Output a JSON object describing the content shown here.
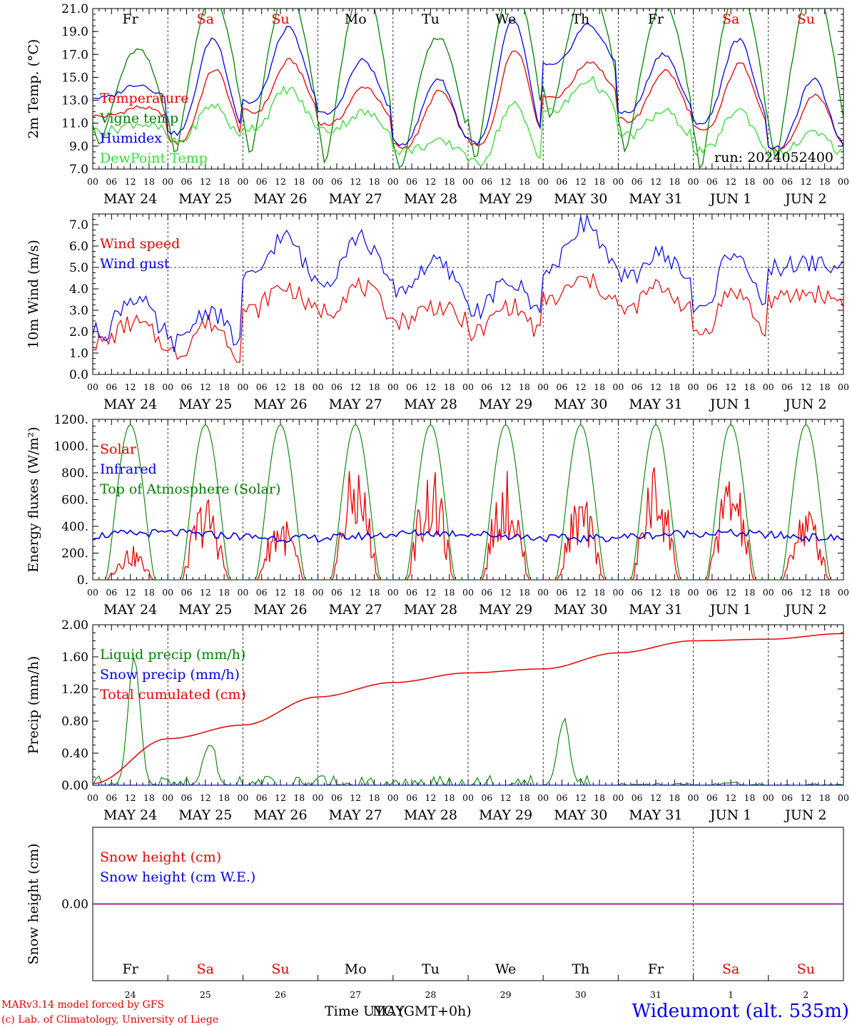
{
  "footer": {
    "credit_line_1": "MARv3.14 model forced by GFS",
    "credit_line_2": "(c) Lab. of Climatology, University of Liege",
    "time_label_a": "Time UTC (GMT+0h)",
    "time_label_b": "MAY",
    "station": "Wideumont (alt. 535m)"
  },
  "colors": {
    "red": "#e60000",
    "blue": "#0000e6",
    "dark_green": "#008000",
    "light_green": "#33dd33",
    "purple": "#8000a0"
  },
  "chart_data": [
    {
      "type": "line",
      "ylabel": "2m Temp. (°C)",
      "ylim": [
        7.0,
        21.0
      ],
      "yticks": [
        "7.0",
        "9.0",
        "11.0",
        "13.0",
        "15.0",
        "17.0",
        "19.0",
        "21.0"
      ],
      "x_hours": [
        "00",
        "06",
        "12",
        "18"
      ],
      "dates": [
        "MAY 24",
        "MAY 25",
        "MAY 26",
        "MAY 27",
        "MAY 28",
        "MAY 29",
        "MAY 30",
        "MAY 31",
        "JUN  1",
        "JUN  2"
      ],
      "weekdays": [
        "Fr",
        "Sa",
        "Su",
        "Mo",
        "Tu",
        "We",
        "Th",
        "Fr",
        "Sa",
        "Su"
      ],
      "weekend": [
        false,
        true,
        true,
        false,
        false,
        false,
        false,
        false,
        true,
        true
      ],
      "annotation": "run: 2024052400",
      "series": [
        {
          "name": "Temperature",
          "color": "#e60000",
          "min": [
            11.6,
            9.3,
            11.9,
            10.9,
            8.9,
            9.0,
            13.3,
            11.2,
            10.3,
            8.6
          ],
          "max": [
            12.4,
            15.7,
            16.5,
            14.2,
            13.8,
            17.5,
            16.4,
            15.6,
            16.2,
            13.5
          ]
        },
        {
          "name": "Vigne temp",
          "color": "#008000",
          "min": [
            9.0,
            8.1,
            8.0,
            7.2,
            6.6,
            7.5,
            11.3,
            8.3,
            6.8,
            7.5
          ],
          "max": [
            17.4,
            22.0,
            22.5,
            23.0,
            18.5,
            23.0,
            23.0,
            21.5,
            23.0,
            23.0
          ]
        },
        {
          "name": "Humidex",
          "color": "#0000e6",
          "min": [
            13.2,
            10.1,
            12.8,
            11.8,
            9.2,
            9.3,
            16.0,
            11.9,
            11.0,
            8.8
          ],
          "max": [
            14.4,
            18.4,
            19.3,
            16.5,
            14.9,
            20.0,
            19.6,
            17.1,
            18.3,
            14.8
          ]
        },
        {
          "name": "DewPoint Temp",
          "color": "#33dd33",
          "min": [
            10.3,
            9.3,
            10.6,
            10.4,
            8.6,
            7.5,
            12.0,
            9.9,
            8.5,
            8.3
          ],
          "max": [
            11.0,
            12.6,
            14.0,
            11.9,
            9.3,
            12.6,
            14.8,
            12.0,
            12.2,
            10.1
          ]
        }
      ]
    },
    {
      "type": "line",
      "ylabel": "10m Wind (m/s)",
      "ylim": [
        0.0,
        7.5
      ],
      "yticks": [
        "0.0",
        "1.0",
        "2.0",
        "3.0",
        "4.0",
        "5.0",
        "6.0",
        "7.0"
      ],
      "reference_line": 5.0,
      "series": [
        {
          "name": "Wind speed",
          "color": "#e60000",
          "daily_mean": [
            1.5,
            1.0,
            3.0,
            3.0,
            2.5,
            2.0,
            3.5,
            3.0,
            2.0,
            3.5
          ],
          "daily_peak": [
            2.4,
            2.4,
            4.1,
            4.1,
            3.2,
            3.2,
            4.4,
            4.1,
            3.9,
            3.8
          ]
        },
        {
          "name": "Wind gust",
          "color": "#0000e6",
          "daily_mean": [
            2.0,
            1.5,
            4.5,
            4.5,
            4.0,
            3.0,
            5.0,
            4.5,
            3.0,
            5.0
          ],
          "daily_peak": [
            3.6,
            3.0,
            6.4,
            6.4,
            5.2,
            4.3,
            7.1,
            5.6,
            5.8,
            5.2
          ]
        }
      ]
    },
    {
      "type": "line",
      "ylabel": "Energy fluxes (W/m²)",
      "ylim": [
        0,
        1200
      ],
      "yticks": [
        "0.",
        "200.",
        "400.",
        "600.",
        "800.",
        "1000.",
        "1200."
      ],
      "series": [
        {
          "name": "Solar",
          "color": "#e60000",
          "daily_peak": [
            260,
            650,
            510,
            900,
            850,
            830,
            650,
            890,
            840,
            580
          ]
        },
        {
          "name": "Infrared",
          "color": "#0000e6",
          "mean": 330
        },
        {
          "name": "Top of Atmosphere (Solar)",
          "color": "#008000",
          "daily_peak": [
            1160,
            1160,
            1160,
            1160,
            1160,
            1160,
            1160,
            1160,
            1160,
            1160
          ]
        }
      ]
    },
    {
      "type": "line",
      "ylabel": "Precip (mm/h)",
      "ylim": [
        0.0,
        2.0
      ],
      "yticks": [
        "0.00",
        "0.40",
        "0.80",
        "1.20",
        "1.60",
        "2.00"
      ],
      "series": [
        {
          "name": "Liquid precip (mm/h)",
          "color": "#008000",
          "peaks": [
            {
              "day": 0.55,
              "v": 1.6
            },
            {
              "day": 1.55,
              "v": 0.5
            },
            {
              "day": 6.27,
              "v": 0.78
            },
            {
              "day": 8.5,
              "v": 0.15
            }
          ]
        },
        {
          "name": "Snow precip (mm/h)",
          "color": "#0000e6",
          "value": 0.0
        },
        {
          "name": "Total cumulated (cm)",
          "color": "#e60000",
          "daily_end": [
            0.58,
            0.75,
            1.1,
            1.28,
            1.4,
            1.45,
            1.65,
            1.8,
            1.82,
            1.89
          ]
        }
      ]
    },
    {
      "type": "line",
      "ylabel": "Snow height (cm)",
      "ylim": [
        -1.0,
        1.0
      ],
      "yticks": [
        "0.00"
      ],
      "day_numbers": [
        "24",
        "25",
        "26",
        "27",
        "28",
        "29",
        "30",
        "31",
        "1",
        "2"
      ],
      "series": [
        {
          "name": "Snow height (cm)",
          "color": "#e60000",
          "value": 0.0
        },
        {
          "name": "Snow height (cm W.E.)",
          "color": "#0000e6",
          "value": 0.0
        }
      ]
    }
  ]
}
